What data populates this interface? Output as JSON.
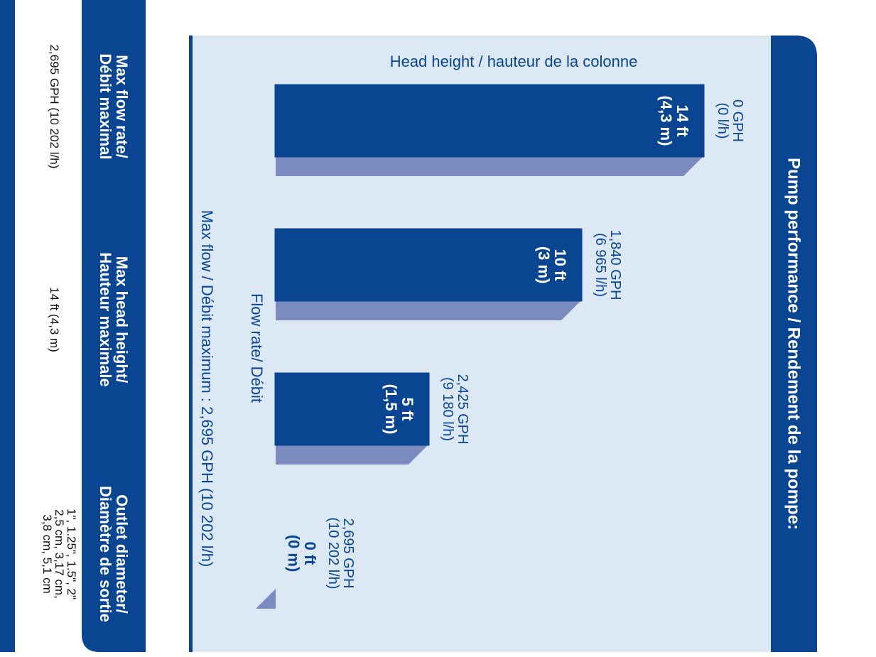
{
  "chart_data": {
    "type": "bar",
    "title": "Pump performance / Rendement de la pompe:",
    "y_label": "Head height / hauteur de la colonne",
    "x_label": "Flow rate/ Débit",
    "note": "Max flow / Débit maximum : 2,695 GPH (10 202 l/h)",
    "categories": [
      "0 GPH\n(0 l/h)",
      "1,840 GPH\n(6 965 l/h)",
      "2,425 GPH\n(9 180 l/h)",
      "2,695 GPH\n(10 202 l/h)"
    ],
    "values": [
      14,
      10,
      5,
      0
    ],
    "value_labels": [
      "14 ft\n(4,3 m)",
      "10 ft\n(3 m)",
      "5 ft\n(1,5 m)",
      "0 ft\n(0 m)"
    ],
    "color": "#0a4592",
    "shadow_color": "#7b8bc0",
    "ylim": [
      0,
      14
    ]
  },
  "specs": {
    "headers": [
      "Max flow rate/\nDébit maximal",
      "Max head height/\nHauteur maximale",
      "Outlet diameter/\nDiamètre de sortie"
    ],
    "values": [
      "2,695 GPH (10 202 l/h)",
      "14 ft  (4,3 m)",
      "1\", 1.25\", 1.5\", 2\"\n2,5 cm, 3,17 cm,\n3,8 cm, 5,1 cm"
    ]
  }
}
